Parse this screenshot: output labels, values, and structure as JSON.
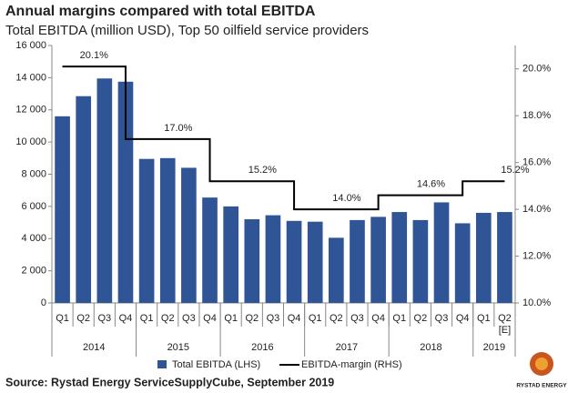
{
  "chart_data": {
    "type": "bar-line",
    "title": "Annual margins compared with total EBITDA",
    "subtitle": "Total EBITDA (million USD), Top 50 oilfield service providers",
    "source": "Source: Rystad Energy ServiceSupplyCube, September 2019",
    "logo_text": "RYSTAD ENERGY",
    "groups": [
      {
        "name": "2014",
        "categories": [
          "Q1",
          "Q2",
          "Q3",
          "Q4"
        ]
      },
      {
        "name": "2015",
        "categories": [
          "Q1",
          "Q2",
          "Q3",
          "Q4"
        ]
      },
      {
        "name": "2016",
        "categories": [
          "Q1",
          "Q2",
          "Q3",
          "Q4"
        ]
      },
      {
        "name": "2017",
        "categories": [
          "Q1",
          "Q2",
          "Q3",
          "Q4"
        ]
      },
      {
        "name": "2018",
        "categories": [
          "Q1",
          "Q2",
          "Q3",
          "Q4"
        ]
      },
      {
        "name": "2019",
        "categories": [
          "Q1",
          "Q2 [E]"
        ]
      }
    ],
    "series": [
      {
        "name": "Total EBITDA (LHS)",
        "type": "bar",
        "color": "#2f5597",
        "values": [
          11600,
          12850,
          13950,
          13750,
          8950,
          9000,
          8400,
          6550,
          6000,
          5200,
          5450,
          5100,
          5050,
          4050,
          5150,
          5350,
          5650,
          5150,
          6250,
          4950,
          5600,
          5650
        ]
      },
      {
        "name": "EBITDA-margin (RHS)",
        "type": "step-line",
        "color": "#000000",
        "axis": "y2",
        "values": [
          20.1,
          20.1,
          20.1,
          20.1,
          17.0,
          17.0,
          17.0,
          17.0,
          15.2,
          15.2,
          15.2,
          15.2,
          14.0,
          14.0,
          14.0,
          14.0,
          14.6,
          14.6,
          14.6,
          14.6,
          15.2,
          15.2
        ],
        "value_labels": [
          null,
          "20.1%",
          null,
          null,
          null,
          "17.0%",
          null,
          null,
          null,
          "15.2%",
          null,
          null,
          null,
          "14.0%",
          null,
          null,
          null,
          "14.6%",
          null,
          null,
          null,
          "15.2%"
        ]
      }
    ],
    "ylim": [
      0,
      16000
    ],
    "yticks": [
      0,
      {
        "value": 2000,
        "label": "2 000"
      },
      {
        "value": 4000,
        "label": "4 000"
      },
      {
        "value": 6000,
        "label": "6 000"
      },
      {
        "value": 8000,
        "label": "8 000"
      },
      {
        "value": 10000,
        "label": "10 000"
      },
      {
        "value": 12000,
        "label": "12 000"
      },
      {
        "value": 14000,
        "label": "14 000"
      },
      {
        "value": 16000,
        "label": "16 000"
      }
    ],
    "y2lim": [
      10,
      21
    ],
    "y2ticks": [
      {
        "value": 10,
        "label": "10.0%"
      },
      {
        "value": 12,
        "label": "12.0%"
      },
      {
        "value": 14,
        "label": "14.0%"
      },
      {
        "value": 16,
        "label": "16.0%"
      },
      {
        "value": 18,
        "label": "18.0%"
      },
      {
        "value": 20,
        "label": "20.0%"
      }
    ],
    "grid": false
  }
}
